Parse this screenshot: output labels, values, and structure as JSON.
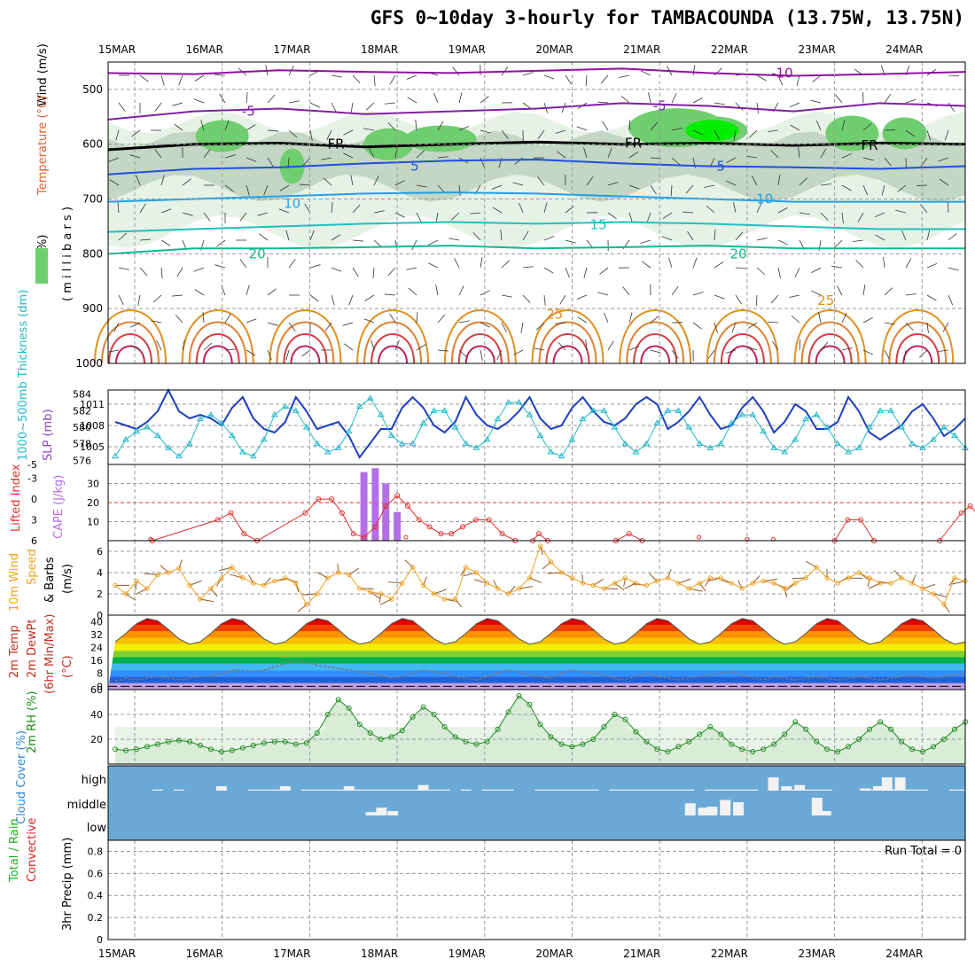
{
  "title": "GFS 0~10day 3-hourly for TAMBACOUNDA (13.75W, 13.75N)",
  "colors": {
    "frame": "#000000",
    "grid": "#999999",
    "rh_green_light": "#e6f2e6",
    "rh_green_mid": "#c4d6c4",
    "rh_green": "#6fce6f",
    "rh_green_bright": "#00ee00",
    "slp_line": "#1f3fbf",
    "thickness_line": "#22b8c8",
    "lifted_index": "#e03030",
    "cape_bar": "#b46ee6",
    "wind_speed": "#f0a020",
    "wind_barb": "#8b5a2b",
    "cloud_bg": "#6aa9d6",
    "cloud_fill": "#f2f2f2",
    "rh2m_line": "#208a20",
    "precip_total": "#22aa22",
    "precip_conv": "#dd2222"
  },
  "chart_data": [
    {
      "type": "contour",
      "panel": "upper_air",
      "ylabel_parts": [
        "Wind (m/s)",
        "Temperature (°C)",
        "RH (%)",
        "( m i l l i b a r s )"
      ],
      "y_ticks": [
        500,
        600,
        700,
        800,
        900,
        1000
      ],
      "date_labels": [
        "15MAR",
        "16MAR",
        "17MAR",
        "18MAR",
        "19MAR",
        "20MAR",
        "21MAR",
        "22MAR",
        "23MAR",
        "24MAR"
      ],
      "day_range": [
        0,
        10
      ],
      "pressure_range": [
        450,
        1000
      ],
      "isotherms": [
        {
          "label": "-10",
          "color": "#9010a0",
          "p": [
            470,
            472,
            465,
            468,
            470,
            466,
            462,
            470,
            475,
            472,
            468
          ]
        },
        {
          "label": "-5",
          "color": "#8020a0",
          "p": [
            555,
            540,
            535,
            545,
            540,
            535,
            525,
            530,
            540,
            525,
            530
          ]
        },
        {
          "label": "FR",
          "color": "#000000",
          "p": [
            610,
            600,
            598,
            605,
            600,
            596,
            600,
            598,
            602,
            598,
            600
          ]
        },
        {
          "label": "5",
          "color": "#1f4fdf",
          "p": [
            655,
            645,
            642,
            635,
            630,
            628,
            635,
            640,
            642,
            645,
            640
          ]
        },
        {
          "label": "10",
          "color": "#1fa0e8",
          "p": [
            705,
            700,
            695,
            690,
            688,
            690,
            695,
            700,
            705,
            705,
            705
          ]
        },
        {
          "label": "15",
          "color": "#20c0c0",
          "p": [
            760,
            755,
            750,
            745,
            742,
            745,
            742,
            745,
            750,
            755,
            755
          ]
        },
        {
          "label": "20",
          "color": "#10b890",
          "p": [
            800,
            790,
            790,
            788,
            785,
            790,
            788,
            785,
            790,
            790,
            790
          ]
        }
      ],
      "contour_labels": [
        {
          "text": "-10",
          "day": 7.4,
          "p": 470,
          "color": "#9010a0"
        },
        {
          "text": "-5",
          "day": 1.3,
          "p": 540,
          "color": "#8020a0"
        },
        {
          "text": "-5",
          "day": 6.0,
          "p": 530,
          "color": "#8020a0"
        },
        {
          "text": "FR",
          "day": 2.3,
          "p": 600,
          "color": "#000000"
        },
        {
          "text": "FR",
          "day": 5.7,
          "p": 598,
          "color": "#000000"
        },
        {
          "text": "FR",
          "day": 8.4,
          "p": 602,
          "color": "#000000"
        },
        {
          "text": "5",
          "day": 3.2,
          "p": 640,
          "color": "#1f4fdf"
        },
        {
          "text": "5",
          "day": 6.7,
          "p": 640,
          "color": "#1f4fdf"
        },
        {
          "text": "10",
          "day": 1.8,
          "p": 708,
          "color": "#1fa0e8"
        },
        {
          "text": "10",
          "day": 7.2,
          "p": 700,
          "color": "#1fa0e8"
        },
        {
          "text": "15",
          "day": 5.3,
          "p": 747,
          "color": "#20c0c0"
        },
        {
          "text": "20",
          "day": 1.4,
          "p": 800,
          "color": "#10b890"
        },
        {
          "text": "20",
          "day": 6.9,
          "p": 800,
          "color": "#10b890"
        },
        {
          "text": "25",
          "day": 4.8,
          "p": 910,
          "color": "#e09020"
        },
        {
          "text": "25",
          "day": 7.9,
          "p": 885,
          "color": "#e09020"
        }
      ]
    },
    {
      "type": "line",
      "panel": "slp_thickness",
      "ylabel_left": "1000~500mb Thickness (dm)",
      "ylabel_right": "SLP (mb)",
      "thickness_ticks": [
        576,
        578,
        580,
        582,
        584
      ],
      "slp_ticks": [
        1005,
        1008,
        1011
      ],
      "thickness_range": [
        575.5,
        584.5
      ],
      "slp_range": [
        1002.5,
        1013
      ],
      "slp": [
        1008.5,
        1008,
        1007.5,
        1008.5,
        1010,
        1013,
        1010,
        1009,
        1009.5,
        1009,
        1008,
        1010.5,
        1012,
        1009,
        1007.5,
        1007,
        1008.5,
        1012,
        1010,
        1007.5,
        1008,
        1008.5,
        1006.5,
        1003.5,
        1005.5,
        1007.5,
        1007.5,
        1010.5,
        1012,
        1010.5,
        1008,
        1007,
        1008.5,
        1012,
        1009.5,
        1008,
        1007.5,
        1008.5,
        1010,
        1012,
        1009,
        1007.5,
        1008,
        1010.5,
        1012,
        1010,
        1008.5,
        1008,
        1009,
        1011,
        1012,
        1011,
        1007.5,
        1008.5,
        1010,
        1012,
        1009.5,
        1007.5,
        1008,
        1010.5,
        1012,
        1010,
        1007,
        1008.5,
        1011,
        1010,
        1007.5,
        1007.5,
        1008.5,
        1012,
        1010,
        1007,
        1006,
        1007,
        1008,
        1010,
        1011,
        1009,
        1006.5,
        1007.5,
        1009
      ],
      "thickness": [
        576.5,
        578.5,
        579.5,
        580,
        579,
        577.5,
        576.5,
        578,
        581,
        581.5,
        580.5,
        579,
        577,
        576.5,
        578.5,
        581.5,
        582.5,
        582,
        580,
        578,
        577,
        577.5,
        579.5,
        582.5,
        583.5,
        581.5,
        579,
        578,
        578,
        580.5,
        582,
        582,
        580,
        578,
        577.5,
        578.5,
        581,
        583,
        583,
        581.5,
        579,
        577,
        576.5,
        578.5,
        581,
        582,
        582,
        580,
        578,
        577,
        578,
        580.5,
        582,
        582,
        580,
        578,
        577.5,
        578,
        580.5,
        581.5,
        581.5,
        579.5,
        577.5,
        577,
        578.5,
        581,
        581.5,
        580,
        578,
        577,
        577.5,
        580,
        582,
        582,
        580,
        578,
        577.5,
        578.5,
        580,
        579,
        577.5
      ]
    },
    {
      "type": "bar+line",
      "panel": "cape_li",
      "ylabel_left": "Lifted Index",
      "ylabel_right": "CAPE (J/kg)",
      "li_ticks": [
        -5,
        -3,
        0,
        3,
        6
      ],
      "cape_ticks": [
        10,
        20,
        30
      ],
      "cape_range": [
        0,
        40
      ],
      "cape_bars": [
        {
          "day": 2.62,
          "value": 36
        },
        {
          "day": 2.75,
          "value": 38
        },
        {
          "day": 2.87,
          "value": 30
        },
        {
          "day": 3.0,
          "value": 15
        }
      ],
      "li_points": [
        {
          "day": 0.2,
          "li": 6
        },
        {
          "day": 0.95,
          "li": 3
        },
        {
          "day": 1.1,
          "li": 2
        },
        {
          "day": 1.25,
          "li": 5
        },
        {
          "day": 1.4,
          "li": 6
        },
        {
          "day": 1.95,
          "li": 2
        },
        {
          "day": 2.1,
          "li": 0
        },
        {
          "day": 2.25,
          "li": 0
        },
        {
          "day": 2.37,
          "li": 2
        },
        {
          "day": 2.5,
          "li": 5
        },
        {
          "day": 2.62,
          "li": 5.5
        },
        {
          "day": 2.75,
          "li": 4
        },
        {
          "day": 2.87,
          "li": 1
        },
        {
          "day": 3.0,
          "li": -0.5
        },
        {
          "day": 3.12,
          "li": 1
        },
        {
          "day": 3.25,
          "li": 3
        },
        {
          "day": 3.37,
          "li": 4
        },
        {
          "day": 3.5,
          "li": 5
        },
        {
          "day": 3.62,
          "li": 5
        },
        {
          "day": 3.75,
          "li": 4
        },
        {
          "day": 3.9,
          "li": 3
        },
        {
          "day": 4.05,
          "li": 3
        },
        {
          "day": 4.2,
          "li": 5
        },
        {
          "day": 4.35,
          "li": 6
        }
      ],
      "li_points_b": [
        {
          "day": 4.55,
          "li": 6
        },
        {
          "day": 4.62,
          "li": 5
        },
        {
          "day": 4.72,
          "li": 6
        }
      ],
      "li_points_c": [
        {
          "day": 5.5,
          "li": 6
        },
        {
          "day": 5.65,
          "li": 5
        },
        {
          "day": 5.8,
          "li": 6
        }
      ],
      "li_points_d": [
        {
          "day": 8.0,
          "li": 6
        },
        {
          "day": 8.15,
          "li": 3
        },
        {
          "day": 8.3,
          "li": 3
        },
        {
          "day": 8.45,
          "li": 6
        }
      ],
      "li_points_e": [
        {
          "day": 9.2,
          "li": 6
        },
        {
          "day": 9.45,
          "li": 2
        },
        {
          "day": 9.55,
          "li": 1
        },
        {
          "day": 9.7,
          "li": 3
        },
        {
          "day": 9.85,
          "li": 6
        }
      ],
      "li_dots": [
        {
          "day": 0.18,
          "li": 5.8
        },
        {
          "day": 3.1,
          "li": 5.5
        },
        {
          "day": 6.45,
          "li": 5.5
        },
        {
          "day": 7.0,
          "li": 5.8
        },
        {
          "day": 7.3,
          "li": 5.8
        }
      ]
    },
    {
      "type": "line",
      "panel": "wind10m",
      "ylabel": "10m Wind Speed & Barbs (m/s)",
      "ylabel_parts": [
        "10m Wind",
        "Speed",
        "& Barbs",
        "(m/s)"
      ],
      "y_ticks": [
        0,
        2,
        4,
        6
      ],
      "y_range": [
        0,
        7
      ],
      "speed": [
        2.8,
        2.0,
        3.2,
        2.5,
        3.8,
        4.0,
        4.4,
        2.8,
        1.5,
        2.5,
        3.5,
        4.5,
        3.5,
        3.0,
        2.8,
        3.2,
        3.5,
        3.0,
        1.0,
        2.0,
        3.5,
        4.0,
        3.8,
        2.5,
        2.2,
        2.0,
        1.5,
        3.0,
        4.5,
        2.8,
        2.0,
        1.5,
        1.5,
        4.5,
        4.0,
        3.0,
        2.5,
        2.0,
        2.5,
        3.5,
        6.5,
        5.0,
        4.0,
        3.5,
        3.0,
        2.8,
        2.5,
        3.0,
        3.5,
        3.0,
        2.8,
        3.2,
        3.5,
        3.0,
        2.5,
        3.0,
        3.5,
        3.5,
        3.0,
        2.5,
        3.0,
        3.2,
        3.0,
        2.5,
        3.0,
        3.5,
        4.5,
        3.5,
        3.0,
        3.5,
        4.0,
        3.5,
        3.0,
        3.0,
        3.5,
        3.0,
        2.5,
        2.0,
        1.0,
        3.5,
        3.2
      ]
    },
    {
      "type": "area",
      "panel": "temp2m",
      "ylabel_parts": [
        "2m Temp",
        "2m DewPt",
        "(6hr Min/Max)",
        "(°C)"
      ],
      "y_ticks": [
        0,
        8,
        16,
        24,
        32,
        40
      ],
      "y_range": [
        -2,
        44
      ],
      "temp_min": 26,
      "temp_max": 42,
      "dewpoint": [
        3,
        5,
        4,
        5,
        6,
        5,
        4,
        5,
        6,
        6,
        8,
        10,
        10,
        9,
        10,
        12,
        14,
        16,
        15,
        13,
        12,
        11,
        10,
        9,
        8,
        7,
        5,
        6,
        8,
        10,
        9,
        8,
        6,
        5,
        4,
        6,
        8,
        10,
        9,
        7,
        6,
        5,
        8,
        10,
        9,
        8,
        7,
        5,
        4,
        6,
        8,
        6,
        5,
        4,
        5,
        6,
        7,
        8,
        9,
        7,
        5,
        4,
        6,
        5,
        4,
        5,
        6,
        5,
        4,
        5,
        6,
        5,
        4,
        5,
        6,
        7,
        6,
        5,
        6,
        7,
        8
      ],
      "color_bands": [
        {
          "from": -2,
          "to": 2,
          "color": "#c0a0e0"
        },
        {
          "from": 2,
          "to": 6,
          "color": "#2060d8"
        },
        {
          "from": 6,
          "to": 10,
          "color": "#3090ff"
        },
        {
          "from": 10,
          "to": 14,
          "color": "#40b8f0"
        },
        {
          "from": 14,
          "to": 18,
          "color": "#00b050"
        },
        {
          "from": 18,
          "to": 22,
          "color": "#80d030"
        },
        {
          "from": 22,
          "to": 26,
          "color": "#f0f000"
        },
        {
          "from": 26,
          "to": 30,
          "color": "#f8c000"
        },
        {
          "from": 30,
          "to": 34,
          "color": "#f89000"
        },
        {
          "from": 34,
          "to": 38,
          "color": "#f04000"
        },
        {
          "from": 38,
          "to": 41,
          "color": "#e00000"
        },
        {
          "from": 41,
          "to": 44,
          "color": "#900000"
        }
      ]
    },
    {
      "type": "area",
      "panel": "rh2m",
      "ylabel": "2m RH (%)",
      "y_ticks": [
        20,
        40,
        60
      ],
      "y_range": [
        0,
        60
      ],
      "rh": [
        12,
        11,
        12,
        14,
        16,
        18,
        19,
        18,
        15,
        12,
        10,
        11,
        13,
        15,
        17,
        18,
        18,
        16,
        17,
        25,
        40,
        52,
        45,
        32,
        25,
        20,
        22,
        27,
        38,
        46,
        40,
        30,
        22,
        18,
        16,
        18,
        28,
        42,
        55,
        48,
        32,
        22,
        16,
        14,
        16,
        20,
        30,
        40,
        36,
        26,
        18,
        12,
        10,
        14,
        18,
        24,
        30,
        24,
        16,
        12,
        10,
        12,
        16,
        24,
        34,
        28,
        18,
        12,
        10,
        14,
        20,
        28,
        34,
        28,
        18,
        12,
        10,
        14,
        20,
        28,
        34
      ]
    },
    {
      "type": "bar",
      "panel": "cloud_cover",
      "ylabel": "Cloud Cover (%)",
      "levels": [
        "high",
        "middle",
        "low"
      ],
      "high_cloud": [
        0,
        0,
        0,
        0,
        5,
        0,
        5,
        0,
        0,
        0,
        20,
        0,
        0,
        5,
        5,
        5,
        20,
        0,
        5,
        5,
        5,
        5,
        20,
        5,
        5,
        5,
        5,
        5,
        5,
        25,
        5,
        5,
        0,
        5,
        0,
        5,
        5,
        5,
        0,
        0,
        5,
        5,
        5,
        5,
        5,
        5,
        0,
        5,
        5,
        5,
        5,
        5,
        5,
        5,
        5,
        0,
        5,
        5,
        5,
        5,
        5,
        0,
        0,
        0,
        5,
        5,
        5,
        5,
        0,
        0,
        0,
        5,
        5,
        5,
        5,
        5,
        5,
        0,
        0,
        5,
        5
      ],
      "high_cloud_extra": [
        {
          "day": 7.3,
          "v": 60
        },
        {
          "day": 7.45,
          "v": 20
        },
        {
          "day": 7.6,
          "v": 25
        },
        {
          "day": 8.35,
          "v": 10
        },
        {
          "day": 8.5,
          "v": 20
        },
        {
          "day": 8.75,
          "v": 60
        },
        {
          "day": 8.6,
          "v": 60
        }
      ],
      "mid_cloud_extra": [
        {
          "day": 2.7,
          "v": 15
        },
        {
          "day": 2.82,
          "v": 35
        },
        {
          "day": 2.95,
          "v": 20
        },
        {
          "day": 6.35,
          "v": 55
        },
        {
          "day": 6.5,
          "v": 35
        },
        {
          "day": 6.6,
          "v": 40
        },
        {
          "day": 6.75,
          "v": 70
        },
        {
          "day": 6.9,
          "v": 60
        },
        {
          "day": 7.8,
          "v": 80
        },
        {
          "day": 7.9,
          "v": 20
        }
      ]
    },
    {
      "type": "bar",
      "panel": "precip",
      "ylabel_parts": [
        "Total / Rain",
        "Convective",
        "3hr Precip (mm)"
      ],
      "y_ticks": [
        "0",
        "0.2",
        "0.4",
        "0.6",
        "0.8"
      ],
      "y_range": [
        0,
        0.9
      ],
      "run_total": "Run Total = 0",
      "values": []
    }
  ]
}
